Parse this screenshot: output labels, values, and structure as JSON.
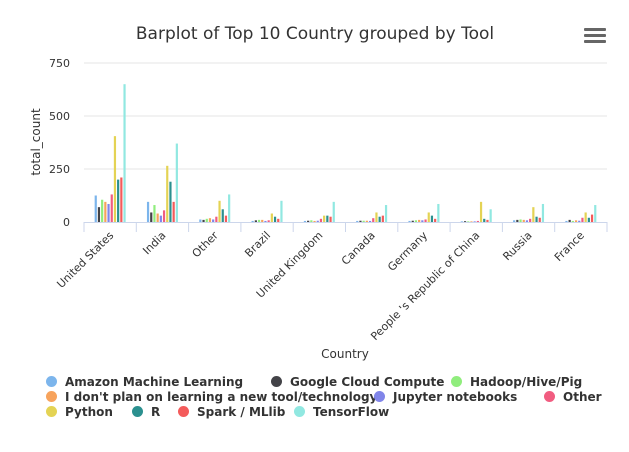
{
  "chart_data": {
    "type": "bar",
    "title": "Barplot of Top 10 Country grouped by Tool",
    "xlabel": "Country",
    "ylabel": "total_count",
    "ylim": [
      0,
      750
    ],
    "yticks": [
      0,
      250,
      500,
      750
    ],
    "grid": true,
    "legend_position": "bottom",
    "categories": [
      "United States",
      "India",
      "Other",
      "Brazil",
      "United Kingdom",
      "Canada",
      "Germany",
      "People 's Republic of China",
      "Russia",
      "France"
    ],
    "series": [
      {
        "name": "Amazon Machine Learning",
        "color": "#7cb5ec",
        "values": [
          125,
          95,
          12,
          5,
          5,
          5,
          5,
          3,
          8,
          5
        ]
      },
      {
        "name": "Google Cloud Compute",
        "color": "#434348",
        "values": [
          70,
          45,
          10,
          8,
          6,
          6,
          6,
          4,
          10,
          10
        ]
      },
      {
        "name": "Hadoop/Hive/Pig",
        "color": "#90ed7d",
        "values": [
          105,
          80,
          15,
          10,
          8,
          6,
          8,
          3,
          12,
          5
        ]
      },
      {
        "name": "I don't plan on learning a new tool/technology",
        "color": "#f7a35c",
        "values": [
          95,
          40,
          18,
          10,
          5,
          6,
          10,
          3,
          10,
          8
        ]
      },
      {
        "name": "Jupyter notebooks",
        "color": "#8085e9",
        "values": [
          85,
          30,
          12,
          5,
          6,
          5,
          8,
          3,
          8,
          6
        ]
      },
      {
        "name": "Other",
        "color": "#f15c80",
        "values": [
          130,
          55,
          25,
          8,
          15,
          18,
          12,
          5,
          15,
          20
        ]
      },
      {
        "name": "Python",
        "color": "#e4d354",
        "values": [
          405,
          265,
          100,
          40,
          30,
          45,
          45,
          95,
          70,
          45
        ]
      },
      {
        "name": "R",
        "color": "#2b908f",
        "values": [
          200,
          190,
          60,
          25,
          30,
          25,
          30,
          15,
          25,
          20
        ]
      },
      {
        "name": "Spark / MLlib",
        "color": "#f45b5b",
        "values": [
          210,
          95,
          30,
          15,
          25,
          30,
          15,
          10,
          20,
          35
        ]
      },
      {
        "name": "TensorFlow",
        "color": "#91e8e1",
        "values": [
          650,
          370,
          130,
          100,
          95,
          80,
          85,
          60,
          85,
          80
        ]
      }
    ]
  },
  "menu": {
    "icon": "hamburger-menu-icon"
  }
}
